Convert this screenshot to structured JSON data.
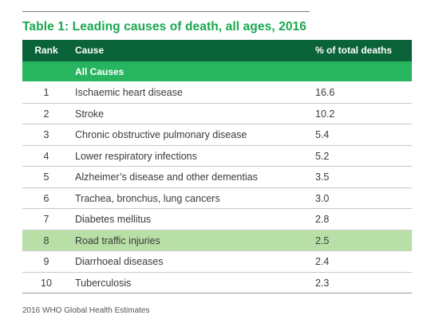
{
  "title": "Table 1: Leading causes of death, all ages, 2016",
  "headers": {
    "rank": "Rank",
    "cause": "Cause",
    "pct": "% of total deaths"
  },
  "all_causes_label": "All Causes",
  "rows": [
    {
      "rank": "1",
      "cause": "Ischaemic heart disease",
      "pct": "16.6"
    },
    {
      "rank": "2",
      "cause": "Stroke",
      "pct": "10.2"
    },
    {
      "rank": "3",
      "cause": "Chronic obstructive pulmonary disease",
      "pct": "5.4"
    },
    {
      "rank": "4",
      "cause": "Lower respiratory infections",
      "pct": "5.2"
    },
    {
      "rank": "5",
      "cause": "Alzheimer’s disease and other dementias",
      "pct": "3.5"
    },
    {
      "rank": "6",
      "cause": "Trachea, bronchus, lung cancers",
      "pct": "3.0"
    },
    {
      "rank": "7",
      "cause": "Diabetes mellitus",
      "pct": "2.8"
    },
    {
      "rank": "8",
      "cause": "Road traffic injuries",
      "pct": "2.5"
    },
    {
      "rank": "9",
      "cause": "Diarrhoeal diseases",
      "pct": "2.4"
    },
    {
      "rank": "10",
      "cause": "Tuberculosis",
      "pct": "2.3"
    }
  ],
  "highlighted_rank": "8",
  "source": "2016 WHO Global Health Estimates",
  "colors": {
    "title_green": "#1aa84f",
    "header_dark_green": "#0b6339",
    "all_causes_green": "#27b560",
    "highlight_row": "#b8e0a6"
  }
}
